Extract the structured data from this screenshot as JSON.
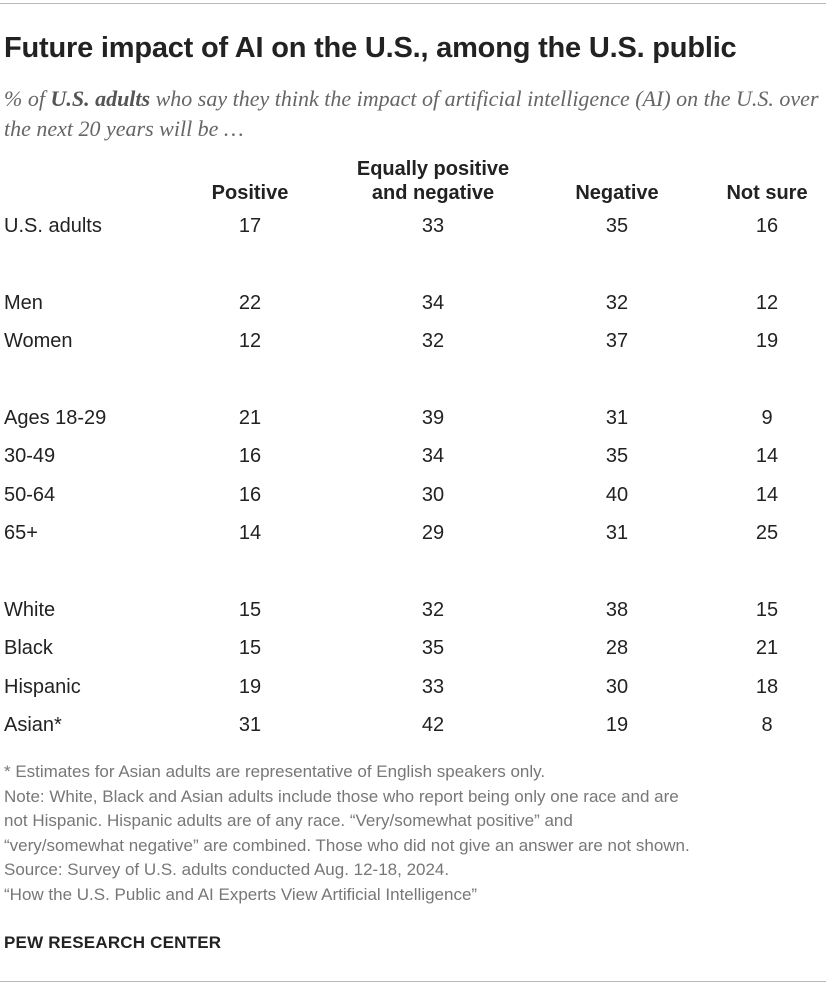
{
  "chart_data": {
    "type": "table",
    "title": "Future impact of AI on the U.S., among the U.S. public",
    "subtitle": {
      "prefix": "% of ",
      "emphasis": "U.S. adults",
      "suffix": " who say they think the impact of artificial intelligence (AI) on the U.S. over the next 20 years will be …"
    },
    "columns": [
      {
        "key": "positive",
        "line1": "",
        "line2": "Positive"
      },
      {
        "key": "equal",
        "line1": "Equally positive",
        "line2": "and negative"
      },
      {
        "key": "negative",
        "line1": "",
        "line2": "Negative"
      },
      {
        "key": "not_sure",
        "line1": "",
        "line2": "Not sure"
      }
    ],
    "groups": [
      [
        {
          "label": "U.S. adults",
          "values": [
            17,
            33,
            35,
            16
          ]
        }
      ],
      [
        {
          "label": "Men",
          "values": [
            22,
            34,
            32,
            12
          ]
        },
        {
          "label": "Women",
          "values": [
            12,
            32,
            37,
            19
          ]
        }
      ],
      [
        {
          "label": "Ages 18-29",
          "values": [
            21,
            39,
            31,
            9
          ]
        },
        {
          "label": "30-49",
          "values": [
            16,
            34,
            35,
            14
          ]
        },
        {
          "label": "50-64",
          "values": [
            16,
            30,
            40,
            14
          ]
        },
        {
          "label": "65+",
          "values": [
            14,
            29,
            31,
            25
          ]
        }
      ],
      [
        {
          "label": "White",
          "values": [
            15,
            32,
            38,
            15
          ]
        },
        {
          "label": "Black",
          "values": [
            15,
            35,
            28,
            21
          ]
        },
        {
          "label": "Hispanic",
          "values": [
            19,
            33,
            30,
            18
          ]
        },
        {
          "label": "Asian*",
          "values": [
            31,
            42,
            19,
            8
          ]
        }
      ]
    ]
  },
  "notes": [
    "* Estimates for Asian adults are representative of English speakers only.",
    "Note: White, Black and Asian adults include those who report being only one race and are",
    "not Hispanic. Hispanic adults are of any race. “Very/somewhat positive” and",
    "“very/somewhat negative” are combined. Those who did not give an answer are not shown.",
    "Source: Survey of U.S. adults conducted Aug. 12-18, 2024.",
    "“How the U.S. Public and AI Experts View Artificial Intelligence”"
  ],
  "brand": "PEW RESEARCH CENTER"
}
